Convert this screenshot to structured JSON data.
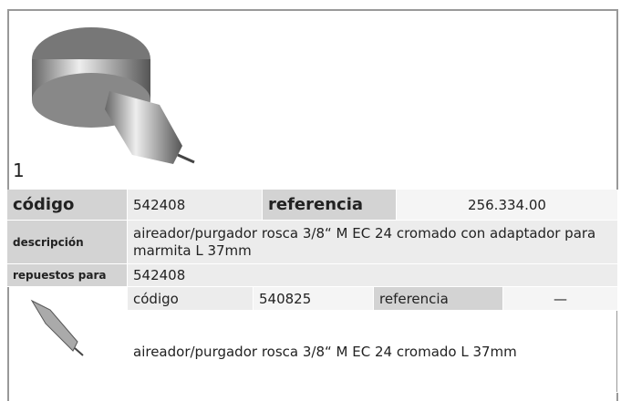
{
  "image_label": "1",
  "main": {
    "codigo_label": "código",
    "codigo": "542408",
    "referencia_label": "referencia",
    "referencia": "256.334.00",
    "descripcion_label": "descripción",
    "descripcion": "aireador/purgador  rosca 3/8“ M EC 24 cromado con adaptador para marmita L 37mm",
    "repuestos_label": "repuestos para",
    "repuestos": "542408"
  },
  "spare": {
    "codigo_label": "código",
    "codigo": "540825",
    "referencia_label": "referencia",
    "referencia": "—",
    "descripcion": "aireador/purgador  rosca 3/8“ M EC 24 cromado L 37mm"
  }
}
